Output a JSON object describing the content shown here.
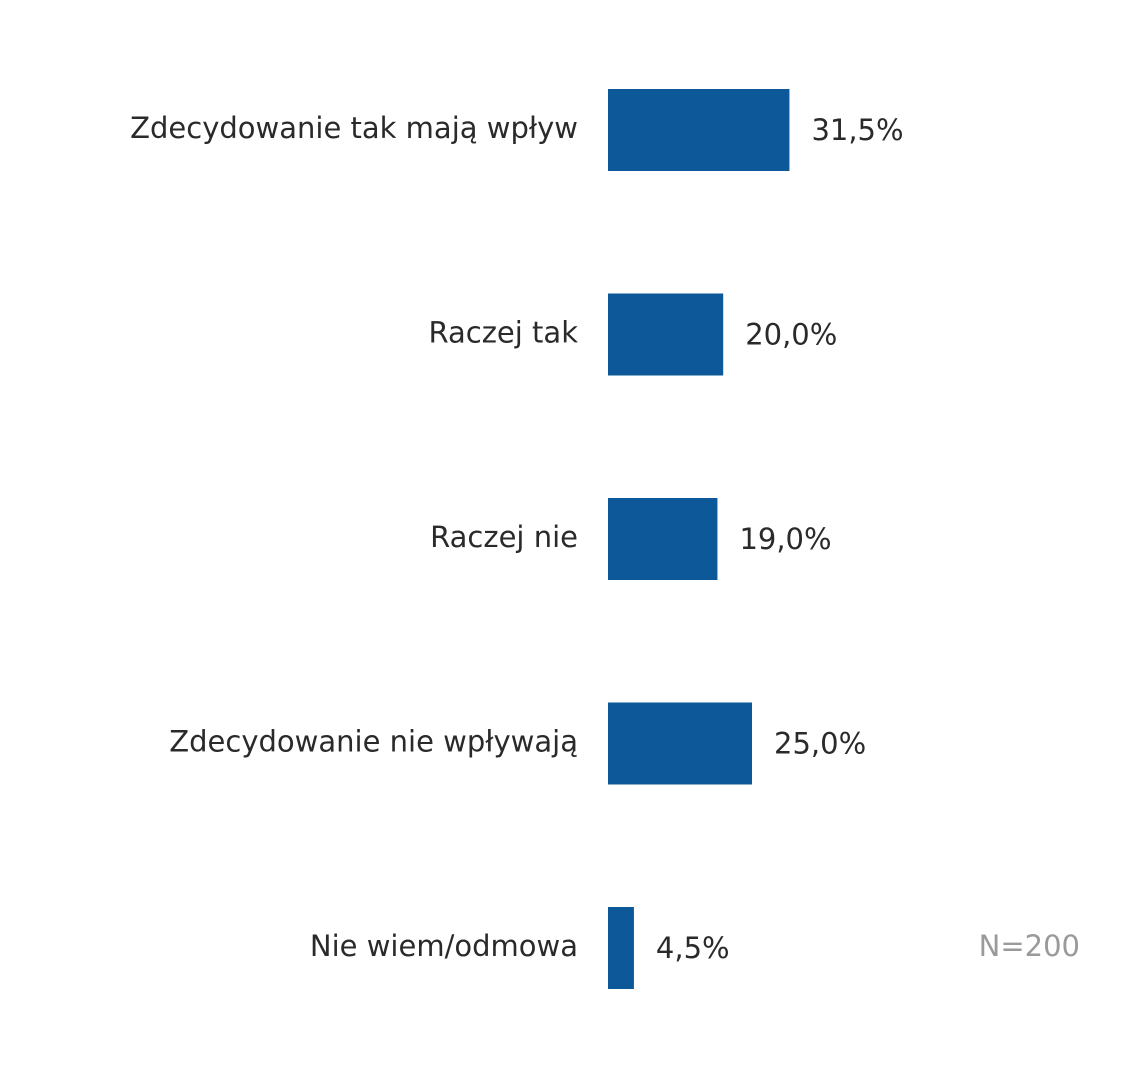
{
  "chart_data": {
    "type": "bar",
    "orientation": "horizontal",
    "title": "",
    "xlabel": "",
    "ylabel": "",
    "categories": [
      "Zdecydowanie tak mają wpływ",
      "Raczej tak",
      "Raczej nie",
      "Zdecydowanie nie wpływają",
      "Nie wiem/odmowa"
    ],
    "values": [
      31.5,
      20.0,
      19.0,
      25.0,
      4.5
    ],
    "value_labels": [
      "31,5%",
      "20,0%",
      "19,0%",
      "25,0%",
      "4,5%"
    ],
    "xlim": [
      0,
      100
    ],
    "grid": false,
    "legend": "none",
    "bar_color": "#0D5899",
    "label_color": "#2a2a2a",
    "annotation": "N=200",
    "annotation_color": "#9a9a9a"
  }
}
